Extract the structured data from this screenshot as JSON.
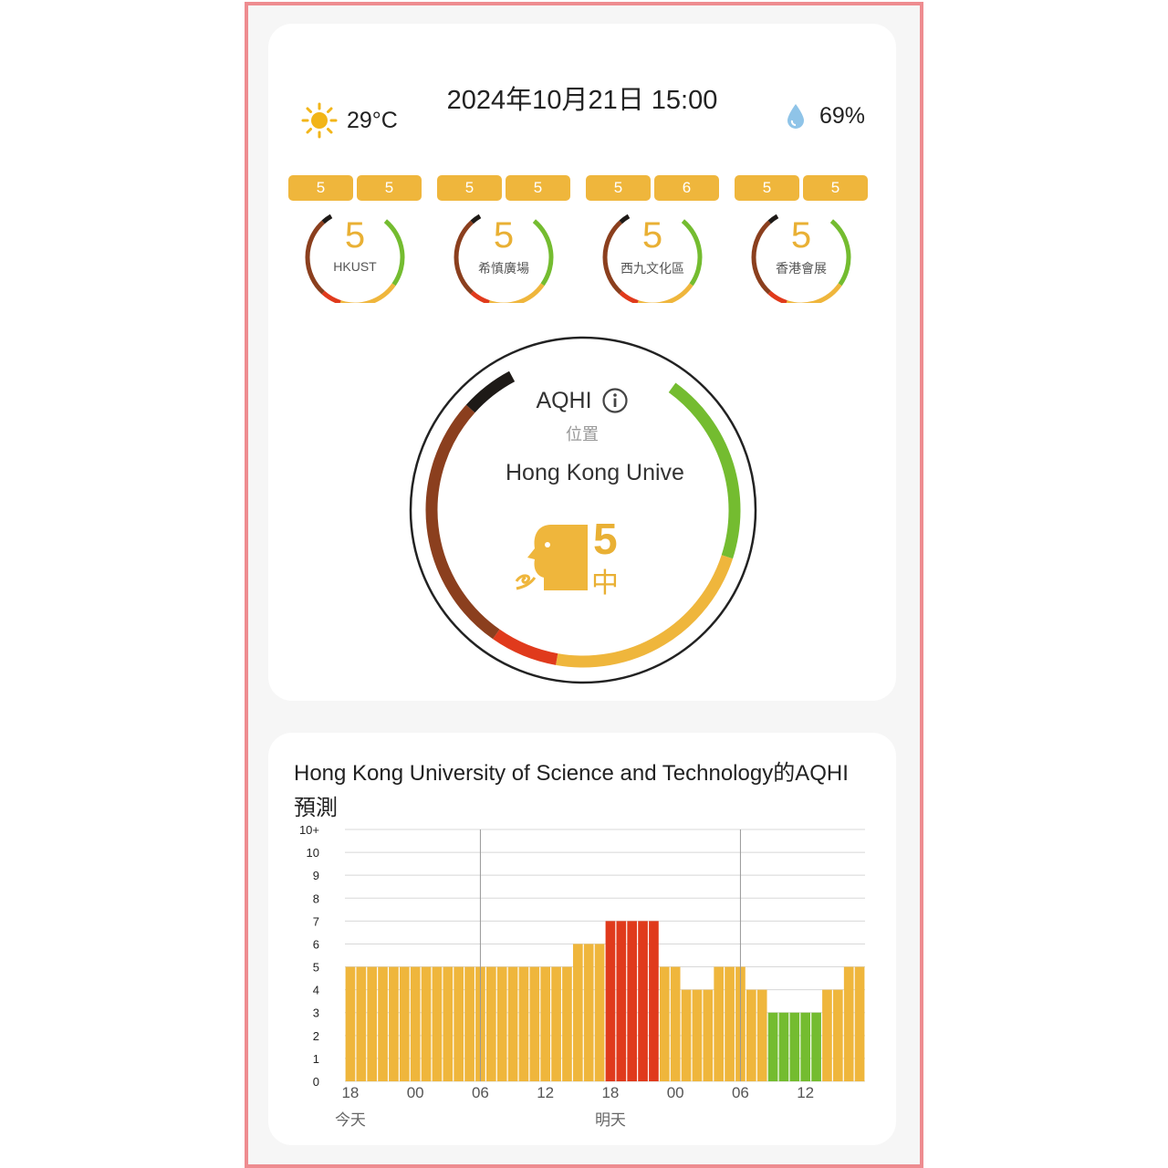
{
  "header": {
    "datetime": "2024年10月21日 15:00"
  },
  "weather": {
    "temperature": "29°C",
    "humidity": "69%",
    "temp_icon": "sun-icon",
    "humidity_icon": "water-drop-icon"
  },
  "stations": [
    {
      "name": "HKUST",
      "value": "5",
      "pills": [
        "5",
        "5"
      ]
    },
    {
      "name": "希慎廣場",
      "value": "5",
      "pills": [
        "5",
        "5"
      ]
    },
    {
      "name": "西九文化區",
      "value": "5",
      "pills": [
        "5",
        "6"
      ]
    },
    {
      "name": "香港會展",
      "value": "5",
      "pills": [
        "5",
        "5"
      ]
    }
  ],
  "aqhi": {
    "title": "AQHI",
    "location_label": "位置",
    "location_name": "Hong Kong Unive",
    "value": "5",
    "level": "中",
    "info_icon": "info-icon",
    "face_icon": "breathing-face-icon"
  },
  "colors": {
    "green": "#74bc30",
    "amber": "#efb63c",
    "red": "#e03a1c",
    "brown": "#8b3f1e",
    "black": "#1e1a17"
  },
  "forecast": {
    "title": "Hong Kong University of Science and Technology的AQHI預測"
  },
  "chart_data": {
    "type": "bar",
    "y_tick_labels": [
      "0",
      "1",
      "2",
      "3",
      "4",
      "5",
      "6",
      "7",
      "8",
      "9",
      "10",
      "10+"
    ],
    "x_tick_labels": [
      "18",
      "00",
      "06",
      "12",
      "18",
      "00",
      "06",
      "12"
    ],
    "day_labels": [
      "今天",
      "明天"
    ],
    "ylim": [
      0,
      11
    ],
    "values": [
      5,
      5,
      5,
      5,
      5,
      5,
      5,
      5,
      5,
      5,
      5,
      5,
      5,
      5,
      5,
      5,
      5,
      5,
      5,
      5,
      5,
      6,
      6,
      6,
      7,
      7,
      7,
      7,
      7,
      5,
      5,
      4,
      4,
      4,
      5,
      5,
      5,
      4,
      4,
      3,
      3,
      3,
      3,
      3,
      4,
      4,
      5,
      5
    ],
    "grid": true
  }
}
